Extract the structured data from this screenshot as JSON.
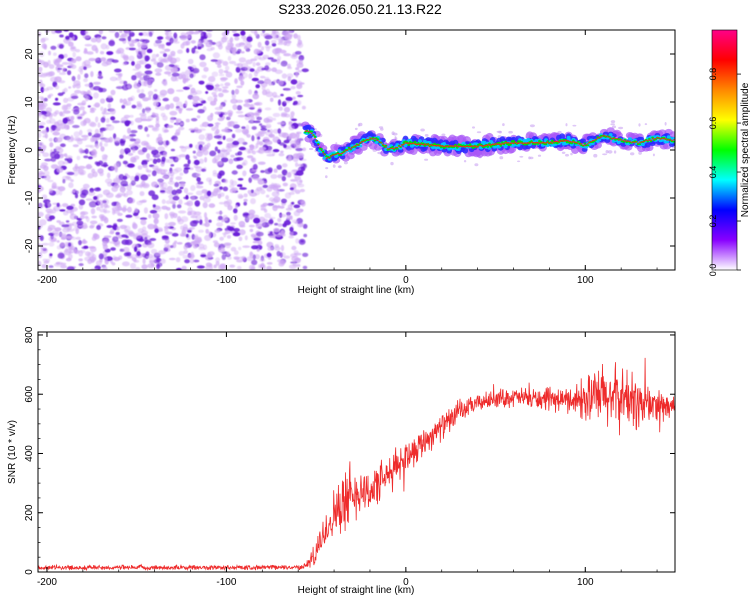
{
  "title": "S233.2026.050.21.13.R22",
  "chart_data": [
    {
      "type": "heatmap",
      "name": "spectrogram",
      "xlabel": "Height of straight line (km)",
      "ylabel": "Frequency (Hz)",
      "xlim": [
        -205,
        150
      ],
      "ylim": [
        -25,
        25
      ],
      "xticks": [
        -200,
        -100,
        0,
        100
      ],
      "yticks": [
        -20,
        -10,
        0,
        10,
        20
      ],
      "noise_region_x": [
        -205,
        -56
      ],
      "signal_start_x": -56,
      "carrier_track": [
        {
          "x": -56,
          "f": 4.0
        },
        {
          "x": -52,
          "f": 3.5
        },
        {
          "x": -48,
          "f": 0.5
        },
        {
          "x": -44,
          "f": -1.8
        },
        {
          "x": -40,
          "f": -1.0
        },
        {
          "x": -35,
          "f": -0.6
        },
        {
          "x": -30,
          "f": 0.5
        },
        {
          "x": -25,
          "f": 1.5
        },
        {
          "x": -20,
          "f": 2.5
        },
        {
          "x": -15,
          "f": 2.0
        },
        {
          "x": -10,
          "f": 0.2
        },
        {
          "x": -5,
          "f": 0.5
        },
        {
          "x": 0,
          "f": 1.5
        },
        {
          "x": 10,
          "f": 1.2
        },
        {
          "x": 20,
          "f": 0.8
        },
        {
          "x": 40,
          "f": 0.8
        },
        {
          "x": 60,
          "f": 1.5
        },
        {
          "x": 80,
          "f": 1.5
        },
        {
          "x": 90,
          "f": 2.0
        },
        {
          "x": 100,
          "f": 1.0
        },
        {
          "x": 110,
          "f": 3.0
        },
        {
          "x": 120,
          "f": 2.0
        },
        {
          "x": 130,
          "f": 1.5
        },
        {
          "x": 140,
          "f": 2.5
        },
        {
          "x": 150,
          "f": 2.0
        }
      ],
      "colorbar": {
        "label": "Normalized spectral amplitude",
        "ticks": [
          "0.0",
          "0.2",
          "0.4",
          "0.6",
          "0.8"
        ],
        "range": [
          0,
          0.98
        ],
        "stops": [
          "#ffffff",
          "#8800ff",
          "#0000ff",
          "#00ffff",
          "#00ff00",
          "#ffff00",
          "#ff8800",
          "#ff0000",
          "#ff0088"
        ]
      },
      "colors": {
        "noise_dark": "#6a1ed8",
        "noise_light": "#cfa8f4"
      }
    },
    {
      "type": "line",
      "name": "snr",
      "xlabel": "Height of straight line (km)",
      "ylabel": "SNR (10 * v/v)",
      "xlim": [
        -205,
        150
      ],
      "ylim": [
        0,
        810
      ],
      "xticks": [
        -200,
        -100,
        0,
        100
      ],
      "yticks": [
        0,
        200,
        400,
        600,
        800
      ],
      "color": "#ee2b2b",
      "series": [
        {
          "name": "SNR",
          "x": [
            -205,
            -100,
            -60,
            -56,
            -50,
            -45,
            -40,
            -35,
            -30,
            -25,
            -20,
            -15,
            -10,
            -5,
            0,
            10,
            20,
            30,
            40,
            50,
            60,
            80,
            100,
            110,
            120,
            130,
            140,
            150
          ],
          "y": [
            15,
            15,
            16,
            20,
            60,
            140,
            200,
            230,
            260,
            280,
            270,
            300,
            320,
            360,
            390,
            440,
            490,
            540,
            570,
            585,
            590,
            580,
            585,
            590,
            590,
            570,
            560,
            560
          ]
        }
      ],
      "noise_amplitude": [
        {
          "x": -205,
          "a": 10
        },
        {
          "x": -56,
          "a": 10
        },
        {
          "x": -50,
          "a": 60
        },
        {
          "x": -35,
          "a": 120
        },
        {
          "x": -20,
          "a": 90
        },
        {
          "x": 0,
          "a": 70
        },
        {
          "x": 40,
          "a": 35
        },
        {
          "x": 90,
          "a": 50
        },
        {
          "x": 110,
          "a": 140
        },
        {
          "x": 130,
          "a": 120
        },
        {
          "x": 150,
          "a": 40
        }
      ]
    }
  ]
}
